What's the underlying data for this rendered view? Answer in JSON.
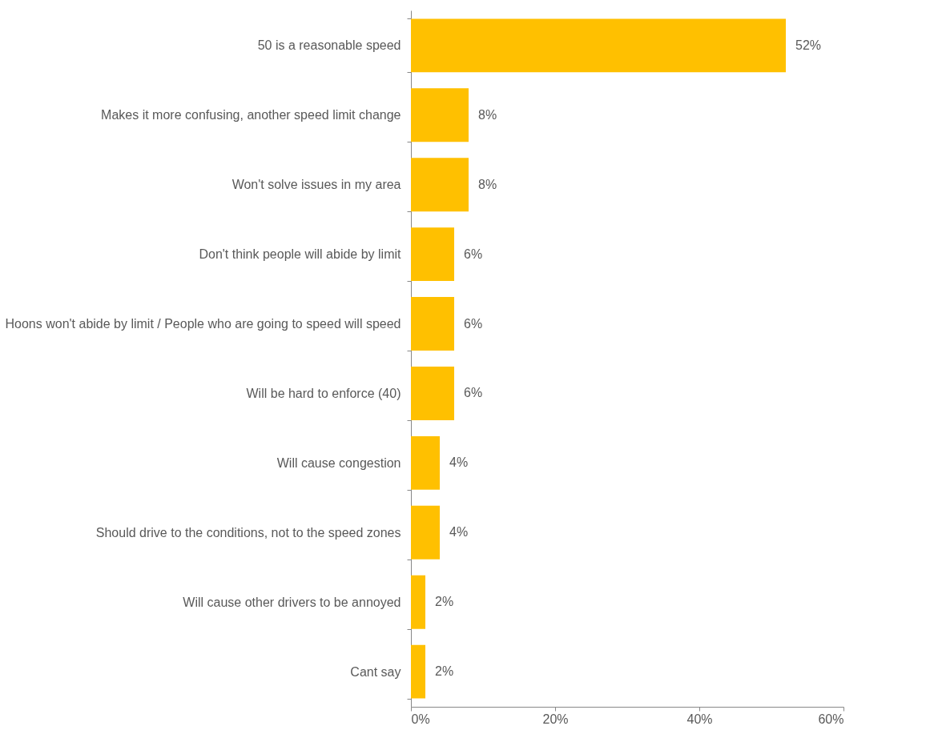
{
  "chart_data": {
    "type": "bar",
    "orientation": "horizontal",
    "categories": [
      "50 is a reasonable speed",
      "Makes it more confusing, another speed limit change",
      "Won't solve issues in my area",
      "Don't think people will abide by limit",
      "Hoons won't abide by limit / People who are going to speed will speed",
      "Will be hard to enforce (40)",
      "Will cause congestion",
      "Should drive to the conditions, not to the speed zones",
      "Will cause other drivers to be annoyed",
      "Cant say"
    ],
    "values": [
      52,
      8,
      8,
      6,
      6,
      6,
      4,
      4,
      2,
      2
    ],
    "value_labels": [
      "52%",
      "8%",
      "8%",
      "6%",
      "6%",
      "6%",
      "4%",
      "4%",
      "2%",
      "2%"
    ],
    "color": "#ffc000",
    "xlim": [
      0,
      60
    ],
    "xticks": [
      {
        "value": 0,
        "label": "0%"
      },
      {
        "value": 20,
        "label": "20%"
      },
      {
        "value": 40,
        "label": "40%"
      },
      {
        "value": 60,
        "label": "60%"
      }
    ],
    "grid": false
  }
}
